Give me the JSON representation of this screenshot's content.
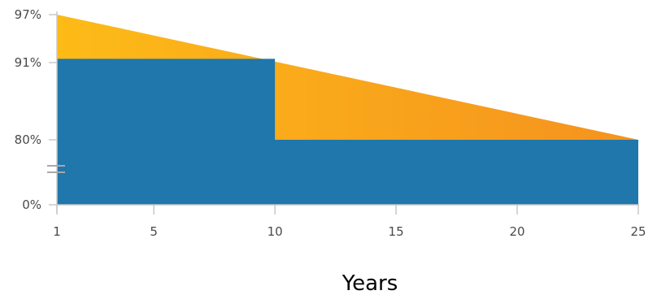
{
  "chart_data": {
    "type": "area",
    "xlabel": "Years",
    "xlim": [
      1,
      25
    ],
    "x_ticks": [
      "1",
      "5",
      "10",
      "15",
      "20",
      "25"
    ],
    "y_ticks": [
      "97%",
      "91%",
      "80%",
      "0%"
    ],
    "y_axis_break": "between 80% and 0%",
    "series": [
      {
        "color": "#f9a11b",
        "gradient_to": "#f5921f",
        "x": [
          1,
          25
        ],
        "y": [
          97,
          80
        ]
      },
      {
        "color": "#1f77ac",
        "x": [
          1,
          10,
          10,
          25
        ],
        "y": [
          91,
          91,
          80,
          80
        ]
      }
    ]
  }
}
